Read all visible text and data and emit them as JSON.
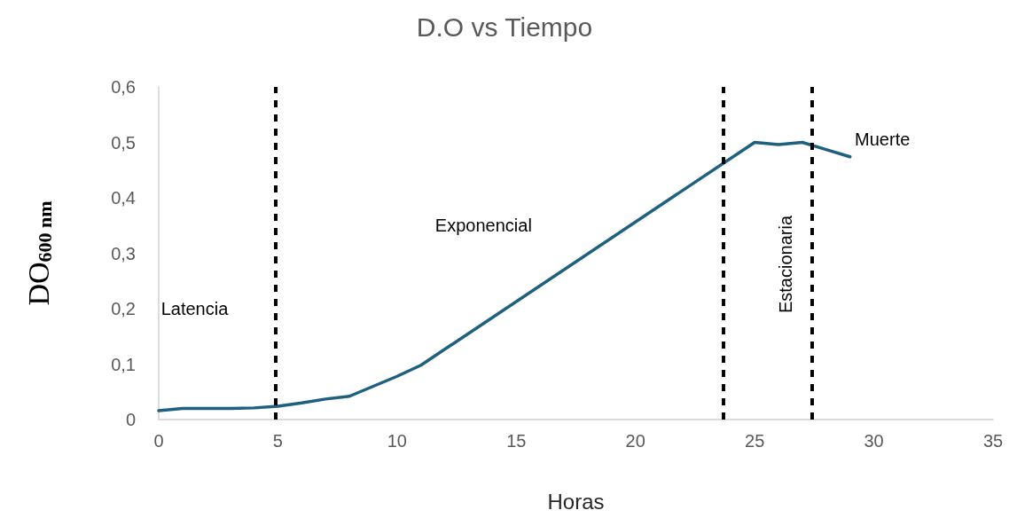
{
  "chart_data": {
    "type": "line",
    "title": "D.O vs Tiempo",
    "xlabel": "Horas",
    "ylabel": "DO$_{600 nm}$",
    "x": [
      0,
      1,
      2,
      3,
      4,
      5,
      6,
      7,
      8,
      9,
      10,
      11,
      25,
      26,
      27,
      28,
      29
    ],
    "series": [
      {
        "color": "#1f5f80",
        "values": [
          0.016,
          0.02,
          0.02,
          0.02,
          0.021,
          0.024,
          0.03,
          0.037,
          0.042,
          0.06,
          0.078,
          0.098,
          0.5,
          0.496,
          0.5,
          0.487,
          0.474
        ]
      }
    ],
    "xlim": [
      0,
      35
    ],
    "xticks": [
      0,
      5,
      10,
      15,
      20,
      25,
      30,
      35
    ],
    "ylim": [
      0,
      0.6
    ],
    "yticks": [
      0,
      {
        "value": 0.1,
        "label": "0,1"
      },
      {
        "value": 0.2,
        "label": "0,2"
      },
      {
        "value": 0.3,
        "label": "0,3"
      },
      {
        "value": 0.4,
        "label": "0,4"
      },
      {
        "value": 0.5,
        "label": "0,5"
      },
      {
        "value": 0.6,
        "label": "0,6"
      }
    ],
    "ref_lines": [
      {
        "axis": "x",
        "value": 4.9,
        "color": "#000000",
        "line_style": "dashed"
      },
      {
        "axis": "x",
        "value": 23.7,
        "color": "#000000",
        "line_style": "dashed"
      },
      {
        "axis": "x",
        "value": 27.4,
        "color": "#000000",
        "line_style": "dashed"
      }
    ],
    "annotations": [
      "Latencia",
      "Exponencial",
      "Estacionaria",
      "Muerte"
    ],
    "grid": false,
    "marker": "none",
    "line_style": "solid"
  }
}
